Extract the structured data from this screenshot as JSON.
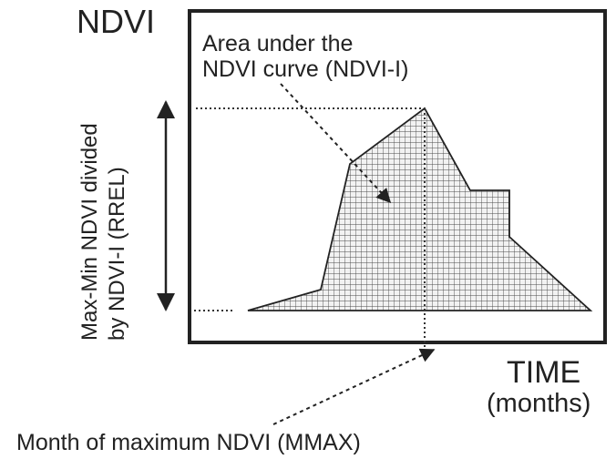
{
  "diagram": {
    "y_axis_label": "NDVI",
    "x_axis_label": "TIME",
    "x_axis_unit": "(months)",
    "area_annotation": {
      "line1": "Area under the",
      "line2": "NDVI curve (NDVI-I)"
    },
    "range_annotation": {
      "line1": "Max-Min NDVI divided",
      "line2": "by NDVI-I (RREL)"
    },
    "max_month_annotation": "Month of maximum NDVI (MMAX)",
    "colors": {
      "ink": "#222222",
      "hatch": "#4a4a4a",
      "fill": "#f2f2f2",
      "background": "#ffffff"
    }
  }
}
